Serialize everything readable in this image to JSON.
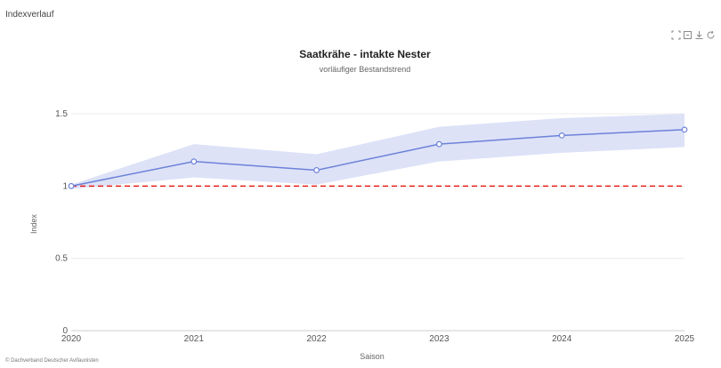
{
  "header": {
    "title": "Indexverlauf"
  },
  "toolbar": {
    "icons": [
      "zoom-in-icon",
      "zoom-out-icon",
      "download-icon",
      "refresh-icon"
    ]
  },
  "footer": {
    "copyright": "© Dachverband Deutscher Avifaunisten"
  },
  "chart_data": {
    "type": "line",
    "title": "Saatkrähe - intakte Nester",
    "subtitle": "vorläufiger Bestandstrend",
    "xlabel": "Saison",
    "ylabel": "Index",
    "x": [
      "2020",
      "2021",
      "2022",
      "2023",
      "2024",
      "2025"
    ],
    "series": [
      {
        "values": [
          1.0,
          1.17,
          1.11,
          1.29,
          1.35,
          1.39
        ],
        "lower": [
          0.98,
          1.06,
          1.01,
          1.17,
          1.23,
          1.27
        ],
        "upper": [
          1.01,
          1.29,
          1.22,
          1.41,
          1.47,
          1.5
        ],
        "color": "#6d82d8",
        "band_color": "#dde2f7"
      }
    ],
    "reference_line": {
      "value": 1.0,
      "color": "#e8201b",
      "style": "dashed"
    },
    "ylim": [
      0,
      1.5
    ],
    "yticks": [
      0,
      0.5,
      1,
      1.5
    ],
    "ytick_labels": [
      "0",
      "0.5",
      "1",
      "1.5"
    ],
    "grid": true,
    "legend": "none"
  }
}
